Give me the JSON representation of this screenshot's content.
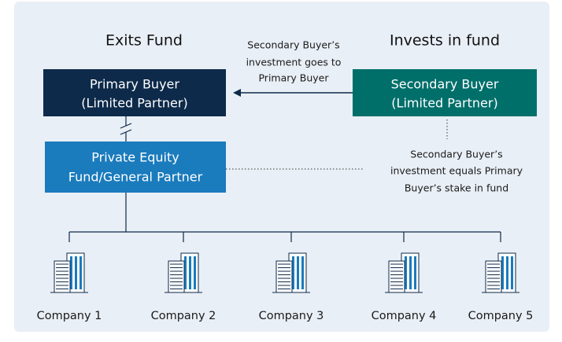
{
  "headings": {
    "left": "Exits Fund",
    "right": "Invests in fund"
  },
  "arrow_note": [
    "Secondary Buyer’s",
    "investment goes to",
    "Primary Buyer"
  ],
  "nodes": [
    {
      "label": [
        "Primary Buyer",
        "(Limited Partner)"
      ]
    },
    {
      "label": [
        "Secondary Buyer",
        "(Limited Partner)"
      ]
    },
    {
      "label": [
        "Private Equity",
        "Fund/General Partner"
      ]
    }
  ],
  "side_note": [
    "Secondary Buyer’s",
    "investment equals Primary",
    "Buyer’s stake in fund"
  ],
  "companies": [
    "Company 1",
    "Company 2",
    "Company 3",
    "Company 4",
    "Company 5"
  ]
}
